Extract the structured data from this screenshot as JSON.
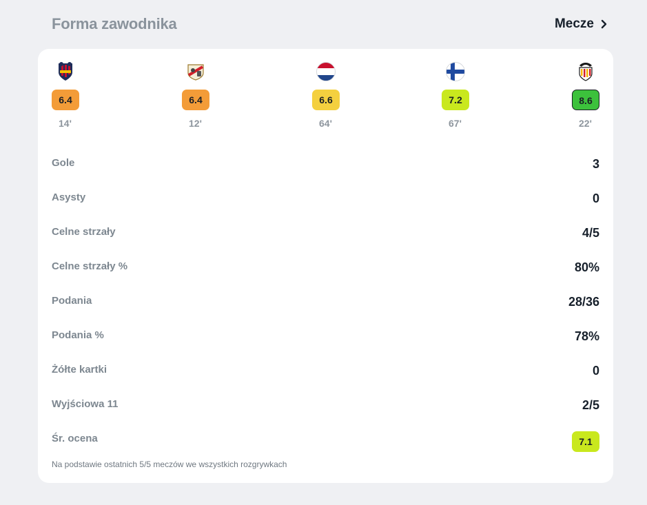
{
  "header": {
    "title": "Forma zawodnika",
    "matches_link_label": "Mecze"
  },
  "matches": [
    {
      "crest_icon": "levante-crest-icon",
      "rating": "6.4",
      "rating_color": "#f39c38",
      "minutes": "14'"
    },
    {
      "crest_icon": "rayo-vallecano-crest-icon",
      "rating": "6.4",
      "rating_color": "#f39c38",
      "minutes": "12'"
    },
    {
      "crest_icon": "netherlands-flag-icon",
      "rating": "6.6",
      "rating_color": "#f4d03f",
      "minutes": "64'"
    },
    {
      "crest_icon": "finland-flag-icon",
      "rating": "7.2",
      "rating_color": "#c9e81e",
      "minutes": "67'"
    },
    {
      "crest_icon": "valencia-crest-icon",
      "rating": "8.6",
      "rating_color": "#3cc13c",
      "minutes": "22'"
    }
  ],
  "stats": [
    {
      "label": "Gole",
      "value": "3"
    },
    {
      "label": "Asysty",
      "value": "0"
    },
    {
      "label": "Celne strzały",
      "value": "4/5"
    },
    {
      "label": "Celne strzały %",
      "value": "80%"
    },
    {
      "label": "Podania",
      "value": "28/36"
    },
    {
      "label": "Podania %",
      "value": "78%"
    },
    {
      "label": "Żółte kartki",
      "value": "0"
    },
    {
      "label": "Wyjściowa 11",
      "value": "2/5"
    },
    {
      "label": "Śr. ocena",
      "value": "7.1",
      "badge_color": "#c9e81e"
    }
  ],
  "footnote": "Na podstawie ostatnich 5/5 meczów we wszystkich rozgrywkach"
}
